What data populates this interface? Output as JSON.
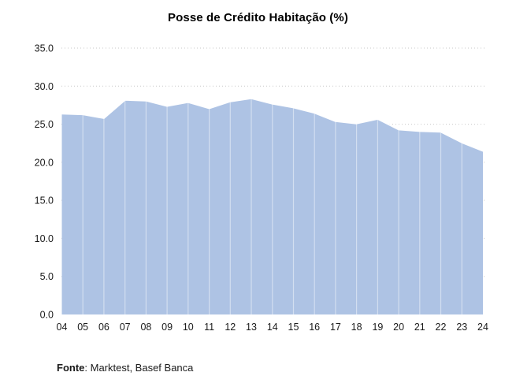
{
  "title": "Posse de Crédito Habitação (%)",
  "footer": {
    "label": "Fonte",
    "rest": ": Marktest, Basef Banca"
  },
  "chart_data": {
    "type": "area",
    "title": "Posse de Crédito Habitação (%)",
    "x": [
      "04",
      "05",
      "06",
      "07",
      "08",
      "09",
      "10",
      "11",
      "12",
      "13",
      "14",
      "15",
      "16",
      "17",
      "18",
      "19",
      "20",
      "21",
      "22",
      "23",
      "24"
    ],
    "values": [
      26.4,
      26.3,
      25.8,
      28.2,
      28.1,
      27.4,
      27.9,
      27.1,
      28.0,
      28.4,
      27.7,
      27.2,
      26.5,
      25.4,
      25.1,
      25.7,
      24.3,
      24.1,
      24.0,
      22.6,
      21.5
    ],
    "xlabel": "",
    "ylabel": "",
    "ylim": [
      0,
      35
    ],
    "ytick_values": [
      35,
      30,
      25,
      20,
      15,
      10,
      5,
      0
    ],
    "ytick_labels": [
      "35.0",
      "30.0",
      "25.0",
      "20.0",
      "15.0",
      "10.0",
      "5.0",
      "0.0"
    ],
    "grid": "horizontal-dotted",
    "legend": "none",
    "source": "Fonte: Marktest, Basef Banca",
    "colors": {
      "fill": "#AEC3E4",
      "line": "#FFFFFF",
      "divider": "rgba(255,255,255,0.45)",
      "grid": "#C9C9C9",
      "text": "#1A1A1A"
    }
  }
}
